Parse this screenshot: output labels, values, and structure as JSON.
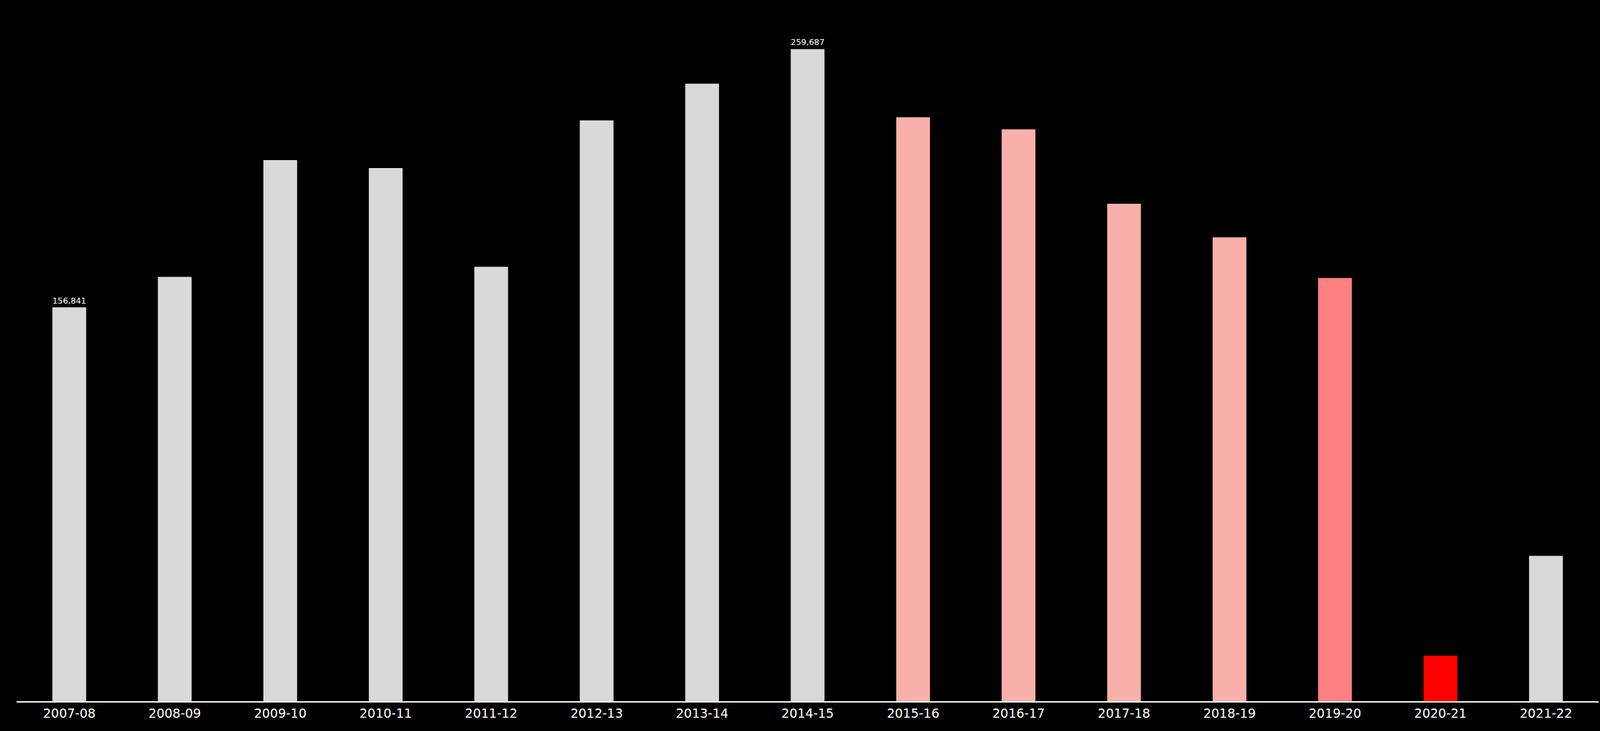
{
  "chart_data": {
    "type": "bar",
    "categories": [
      "2007-08",
      "2008-09",
      "2009-10",
      "2010-11",
      "2011-12",
      "2012-13",
      "2013-14",
      "2014-15",
      "2015-16",
      "2016-17",
      "2017-18",
      "2018-19",
      "2019-20",
      "2020-21",
      "2021-22"
    ],
    "values": [
      156841,
      169000,
      215500,
      212300,
      173000,
      231300,
      245900,
      259687,
      232500,
      227700,
      198100,
      184700,
      168500,
      18200,
      57900
    ],
    "value_labels": [
      "156,841",
      null,
      null,
      null,
      null,
      null,
      null,
      "259,687",
      null,
      null,
      null,
      null,
      null,
      null,
      null
    ],
    "colors": [
      "#d9d9d9",
      "#d9d9d9",
      "#d9d9d9",
      "#d9d9d9",
      "#d9d9d9",
      "#d9d9d9",
      "#d9d9d9",
      "#d9d9d9",
      "#f9b0aa",
      "#f9b0aa",
      "#f9b0aa",
      "#f9b0aa",
      "#ff8080",
      "#ff0000",
      "#d9d9d9"
    ],
    "data_labels": true,
    "tick_labels": "x",
    "grid": false,
    "ylim": [
      0,
      270000
    ],
    "yticks": []
  }
}
